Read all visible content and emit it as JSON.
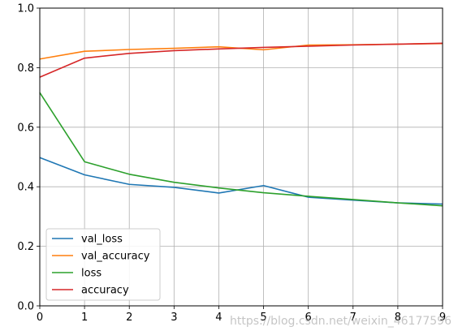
{
  "chart_data": {
    "type": "line",
    "x": [
      0,
      1,
      2,
      3,
      4,
      5,
      6,
      7,
      8,
      9
    ],
    "xlim": [
      0,
      9
    ],
    "ylim": [
      0,
      1.0
    ],
    "xticks": [
      "0",
      "1",
      "2",
      "3",
      "4",
      "5",
      "6",
      "7",
      "8",
      "9"
    ],
    "yticks": [
      "0.0",
      "0.2",
      "0.4",
      "0.6",
      "0.8",
      "1.0"
    ],
    "grid": true,
    "legend_position": "lower-left",
    "series": [
      {
        "name": "val_loss",
        "color": "#1f77b4",
        "values": [
          0.498,
          0.44,
          0.408,
          0.398,
          0.379,
          0.404,
          0.365,
          0.355,
          0.346,
          0.342
        ]
      },
      {
        "name": "val_accuracy",
        "color": "#ff7f0e",
        "values": [
          0.829,
          0.855,
          0.861,
          0.865,
          0.87,
          0.86,
          0.876,
          0.877,
          0.879,
          0.881
        ]
      },
      {
        "name": "loss",
        "color": "#2ca02c",
        "values": [
          0.716,
          0.484,
          0.442,
          0.415,
          0.396,
          0.38,
          0.368,
          0.357,
          0.346,
          0.336
        ]
      },
      {
        "name": "accuracy",
        "color": "#d62728",
        "values": [
          0.768,
          0.832,
          0.848,
          0.857,
          0.863,
          0.868,
          0.872,
          0.876,
          0.879,
          0.882
        ]
      }
    ]
  },
  "watermark": "https://blog.csdn.net/weixin_46177596"
}
